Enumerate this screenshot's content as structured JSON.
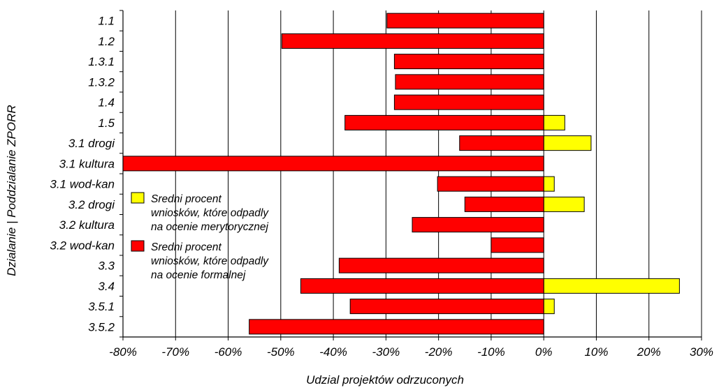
{
  "chart_data": {
    "type": "bar",
    "orientation": "horizontal",
    "categories": [
      "1.1",
      "1.2",
      "1.3.1",
      "1.3.2",
      "1.4",
      "1.5",
      "3.1 drogi",
      "3.1 kultura",
      "3.1 wod-kan",
      "3.2 drogi",
      "3.2 kultura",
      "3.2 wod-kan",
      "3.3",
      "3.4",
      "3.5.1",
      "3.5.2"
    ],
    "series": [
      {
        "name": "Sredni procent wniosków, które odpadly na ocenie merytorycznej",
        "color": "#ffff00",
        "values": [
          0,
          0,
          0,
          0,
          0,
          4,
          9,
          0,
          2,
          7.7,
          0,
          0,
          0,
          25.8,
          2,
          0
        ]
      },
      {
        "name": "Sredni procent wniosków, które odpadly na ocenie formalnej",
        "color": "#ff0000",
        "values": [
          -29.8,
          -49.8,
          -28.4,
          -28.2,
          -28.4,
          -37.8,
          -16,
          -80,
          -20.2,
          -15,
          -25,
          -10,
          -38.9,
          -46.2,
          -36.8,
          -56
        ]
      }
    ],
    "xlim": [
      -80,
      30
    ],
    "xticks": [
      -80,
      -70,
      -60,
      -50,
      -40,
      -30,
      -20,
      -10,
      0,
      10,
      20,
      30
    ],
    "xtick_labels": [
      "-80%",
      "-70%",
      "-60%",
      "-50%",
      "-40%",
      "-30%",
      "-20%",
      "-10%",
      "0%",
      "10%",
      "20%",
      "30%"
    ],
    "xlabel": "Udzial projektów odrzuconych",
    "ylabel": "Dzialanie | Poddzialanie ZPORR",
    "grid": "vertical",
    "legend": {
      "placement": "inside-left",
      "entries": [
        {
          "color": "#ffff00",
          "lines": [
            "Sredni procent",
            "wniosków, które odpadly",
            "na ocenie merytorycznej"
          ]
        },
        {
          "color": "#ff0000",
          "lines": [
            "Sredni procent",
            "wniosków, które odpadly",
            "na ocenie formalnej"
          ]
        }
      ]
    }
  }
}
